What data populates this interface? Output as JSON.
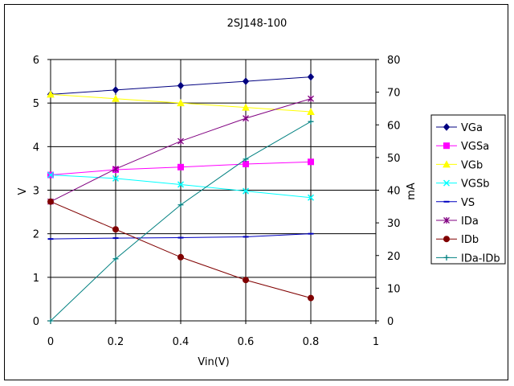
{
  "chart_data": {
    "type": "line",
    "title": "2SJ148-100",
    "xlabel": "Vin(V)",
    "ylabel_left": "V",
    "ylabel_right": "mA",
    "x": [
      0,
      0.2,
      0.4,
      0.6,
      0.8
    ],
    "xlim": [
      0,
      1
    ],
    "xticks": [
      "0",
      "0.2",
      "0.4",
      "0.6",
      "0.8",
      "1"
    ],
    "ylim_left": [
      0,
      6
    ],
    "yticks_left": [
      "0",
      "1",
      "2",
      "3",
      "4",
      "5",
      "6"
    ],
    "ylim_right": [
      0,
      80
    ],
    "yticks_right": [
      "0",
      "10",
      "20",
      "30",
      "40",
      "50",
      "60",
      "70",
      "80"
    ],
    "grid": true,
    "legend_position": "right",
    "series": [
      {
        "name": "VGa",
        "axis": "left",
        "color": "#000080",
        "marker": "diamond",
        "values": [
          5.2,
          5.3,
          5.4,
          5.5,
          5.6
        ]
      },
      {
        "name": "VGSa",
        "axis": "left",
        "color": "#ff00ff",
        "marker": "square",
        "values": [
          3.35,
          3.47,
          3.53,
          3.6,
          3.65
        ]
      },
      {
        "name": "VGb",
        "axis": "left",
        "color": "#ffff00",
        "marker": "triangle",
        "values": [
          5.2,
          5.1,
          5.0,
          4.9,
          4.8
        ]
      },
      {
        "name": "VGSb",
        "axis": "left",
        "color": "#00ffff",
        "marker": "x",
        "values": [
          3.35,
          3.27,
          3.13,
          2.98,
          2.83
        ]
      },
      {
        "name": "VS",
        "axis": "left",
        "color": "#0000c0",
        "marker": "dash",
        "values": [
          1.88,
          1.9,
          1.91,
          1.93,
          2.0
        ]
      },
      {
        "name": "IDa",
        "axis": "right",
        "color": "#800080",
        "marker": "star",
        "values": [
          36.5,
          46.5,
          55,
          62,
          68
        ]
      },
      {
        "name": "IDb",
        "axis": "right",
        "color": "#800000",
        "marker": "circle",
        "values": [
          36.5,
          28,
          19.5,
          12.5,
          7
        ]
      },
      {
        "name": "IDa-IDb",
        "axis": "right",
        "color": "#008080",
        "marker": "plus",
        "values": [
          0,
          19,
          35.5,
          49.5,
          61
        ]
      }
    ]
  }
}
